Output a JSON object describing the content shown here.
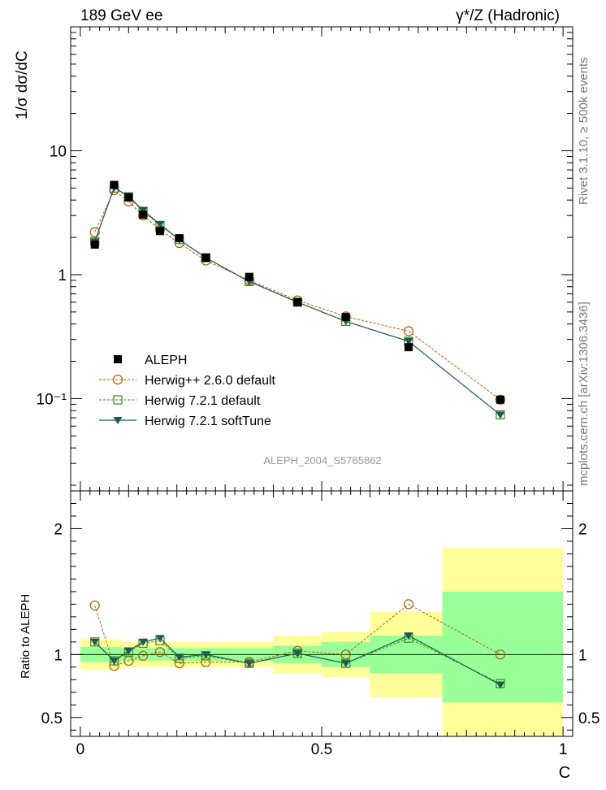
{
  "header": {
    "left": "189 GeV ee",
    "right": "γ*/Z (Hadronic)"
  },
  "side_labels": {
    "rivet": "Rivet 3.1.10, ≥ 500k events",
    "source": "mcplots.cern.ch [arXiv:1306.3436]"
  },
  "analysis_label": "ALEPH_2004_S5765862",
  "colors": {
    "data": "#000000",
    "herwigpp": "#b25b00",
    "h721default": "#3d8c12",
    "h721soft": "#1d5a5a",
    "band_outer": "#ffff99",
    "band_inner": "#99ff99"
  },
  "chart_data": [
    {
      "type": "scatter",
      "panel": "main",
      "ylabel": "1/σ  dσ/dC",
      "yscale": "log",
      "xlim": [
        -0.02,
        1.02
      ],
      "ylim": [
        0.018,
        100
      ],
      "y_tick_labels": [
        "10",
        "1",
        "10⁻¹"
      ],
      "x": [
        0.03,
        0.07,
        0.1,
        0.13,
        0.165,
        0.205,
        0.26,
        0.35,
        0.45,
        0.55,
        0.68,
        0.87
      ],
      "series": [
        {
          "name": "ALEPH",
          "style": "data",
          "values": [
            1.75,
            5.3,
            4.2,
            3.05,
            2.25,
            1.97,
            1.37,
            0.96,
            0.6,
            0.455,
            0.26,
            0.098
          ]
        },
        {
          "name": "Herwig++ 2.6.0 default",
          "style": "herwigpp",
          "values": [
            2.2,
            4.8,
            3.9,
            3.0,
            2.3,
            1.8,
            1.3,
            0.9,
            0.62,
            0.46,
            0.35,
            0.098
          ]
        },
        {
          "name": "Herwig 7.2.1 default",
          "style": "h721default",
          "values": [
            1.85,
            5.0,
            4.25,
            3.25,
            2.5,
            1.92,
            1.37,
            0.88,
            0.6,
            0.42,
            0.29,
            0.074
          ]
        },
        {
          "name": "Herwig 7.2.1 softTune",
          "style": "h721soft",
          "values": [
            1.85,
            5.05,
            4.3,
            3.3,
            2.55,
            1.92,
            1.37,
            0.88,
            0.6,
            0.42,
            0.29,
            0.074
          ]
        }
      ]
    },
    {
      "type": "scatter",
      "panel": "ratio",
      "xlabel": "C",
      "ylabel": "Ratio to ALEPH",
      "xlim": [
        -0.02,
        1.02
      ],
      "ylim": [
        0.35,
        2.3
      ],
      "x_tick_labels": [
        "0",
        "0.5",
        "1"
      ],
      "y_tick_labels": [
        "2",
        "1",
        "0.5"
      ],
      "x": [
        0.03,
        0.07,
        0.1,
        0.13,
        0.165,
        0.205,
        0.26,
        0.35,
        0.45,
        0.55,
        0.68,
        0.87
      ],
      "uncertainty_bands": {
        "bin_edges": [
          0.0,
          0.05,
          0.085,
          0.115,
          0.145,
          0.185,
          0.225,
          0.3,
          0.4,
          0.5,
          0.6,
          0.75,
          1.0
        ],
        "outer": [
          [
            0.88,
            1.12
          ],
          [
            0.88,
            1.12
          ],
          [
            0.9,
            1.1
          ],
          [
            0.9,
            1.1
          ],
          [
            0.9,
            1.1
          ],
          [
            0.9,
            1.1
          ],
          [
            0.9,
            1.1
          ],
          [
            0.9,
            1.1
          ],
          [
            0.85,
            1.15
          ],
          [
            0.82,
            1.18
          ],
          [
            0.66,
            1.34
          ],
          [
            0.35,
            1.85
          ]
        ],
        "inner": [
          [
            0.94,
            1.06
          ],
          [
            0.94,
            1.06
          ],
          [
            0.95,
            1.05
          ],
          [
            0.95,
            1.05
          ],
          [
            0.95,
            1.05
          ],
          [
            0.95,
            1.05
          ],
          [
            0.95,
            1.05
          ],
          [
            0.95,
            1.05
          ],
          [
            0.93,
            1.07
          ],
          [
            0.9,
            1.1
          ],
          [
            0.85,
            1.15
          ],
          [
            0.62,
            1.5
          ]
        ]
      },
      "series": [
        {
          "name": "Herwig++ 2.6.0 default",
          "style": "herwigpp",
          "values": [
            1.39,
            0.91,
            0.95,
            0.99,
            1.02,
            0.93,
            0.94,
            0.94,
            1.03,
            1.0,
            1.4,
            1.0
          ]
        },
        {
          "name": "Herwig 7.2.1 default",
          "style": "h721default",
          "values": [
            1.1,
            0.95,
            1.02,
            1.09,
            1.11,
            0.97,
            0.99,
            0.93,
            1.01,
            0.93,
            1.13,
            0.77
          ]
        },
        {
          "name": "Herwig 7.2.1 softTune",
          "style": "h721soft",
          "values": [
            1.1,
            0.95,
            1.03,
            1.1,
            1.13,
            0.98,
            1.0,
            0.93,
            1.01,
            0.93,
            1.15,
            0.76
          ]
        }
      ]
    }
  ]
}
